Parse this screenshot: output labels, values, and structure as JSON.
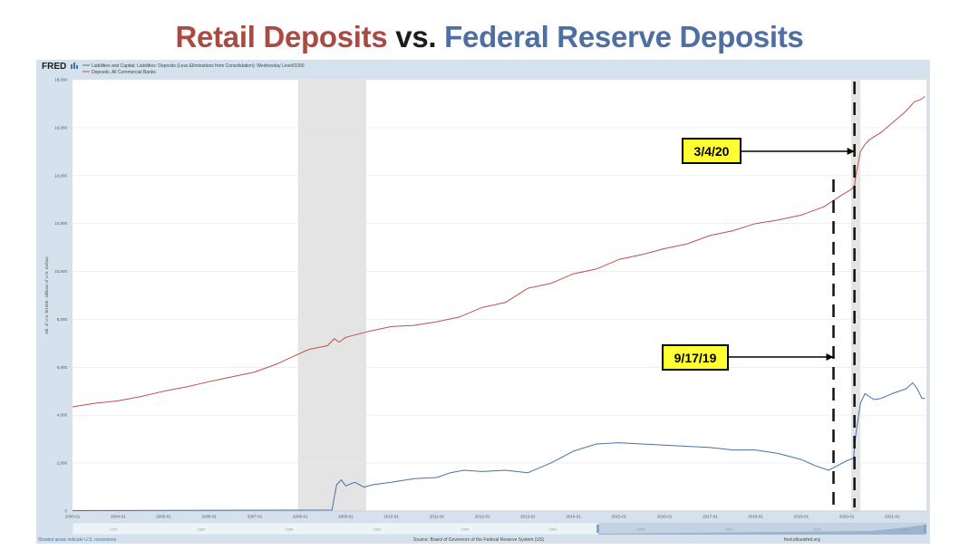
{
  "slide": {
    "title_part1": "Retail Deposits",
    "title_part2": "vs.",
    "title_part3": "Federal Reserve Deposits"
  },
  "fred": {
    "logo": "FRED",
    "legend": [
      "Liabilities and Capital: Liabilities: Deposits (Less Eliminations from Consolidation): Wednesday Level/1000",
      "Deposits, All Commercial Banks"
    ],
    "footer_left": "Shaded areas indicate U.S. recessions",
    "footer_center": "Source: Board of Governors of the Federal Reserve System (US)",
    "footer_right": "fred.stlouisfed.org",
    "navigator_labels": [
      "1975",
      "1980",
      "1985",
      "1990",
      "1995",
      "2000",
      "2005",
      "2010",
      "2015",
      "2020"
    ]
  },
  "annotations": [
    {
      "label": "3/4/20",
      "date": 2020.17
    },
    {
      "label": "9/17/19",
      "date": 2019.71
    }
  ],
  "colors": {
    "retail": "#a94a43",
    "fed": "#4d6fa3",
    "series_red": "#c0504d",
    "series_blue": "#4572a7",
    "callout_fill": "#ffff33",
    "recession": "#e4e4e4",
    "frame": "#d5e2ee"
  },
  "chart_data": {
    "type": "line",
    "ylabel": "Mil. of U.S. $/1000 , Billions of U.S. Dollars",
    "xlim": [
      2003,
      2021.75
    ],
    "ylim": [
      0,
      18000
    ],
    "yticks": [
      0,
      2000,
      4000,
      6000,
      8000,
      10000,
      12000,
      14000,
      16000,
      18000
    ],
    "ytick_labels": [
      "0",
      "2,000",
      "4,000",
      "6,000",
      "8,000",
      "10,000",
      "12,000",
      "14,000",
      "16,000",
      "18,000"
    ],
    "xticks": [
      2003,
      2004,
      2005,
      2006,
      2007,
      2008,
      2009,
      2010,
      2011,
      2012,
      2013,
      2014,
      2015,
      2016,
      2017,
      2018,
      2019,
      2020,
      2021
    ],
    "xtick_labels": [
      "2003-01",
      "2004-01",
      "2005-01",
      "2006-01",
      "2007-01",
      "2008-01",
      "2009-01",
      "2010-01",
      "2011-01",
      "2012-01",
      "2013-01",
      "2014-01",
      "2015-01",
      "2016-01",
      "2017-01",
      "2018-01",
      "2019-01",
      "2020-01",
      "2021-01"
    ],
    "recessions": [
      [
        2007.95,
        2009.45
      ],
      [
        2020.1,
        2020.3
      ]
    ],
    "grid": true,
    "series": [
      {
        "name": "Deposits, All Commercial Banks",
        "x": [
          2003.0,
          2003.5,
          2004.0,
          2004.5,
          2005.0,
          2005.5,
          2006.0,
          2006.5,
          2007.0,
          2007.5,
          2007.9,
          2008.2,
          2008.6,
          2008.75,
          2008.85,
          2009.0,
          2009.5,
          2010.0,
          2010.5,
          2011.0,
          2011.5,
          2012.0,
          2012.5,
          2013.0,
          2013.5,
          2014.0,
          2014.5,
          2015.0,
          2015.5,
          2016.0,
          2016.5,
          2017.0,
          2017.5,
          2018.0,
          2018.5,
          2019.0,
          2019.5,
          2019.9,
          2020.08,
          2020.17,
          2020.2,
          2020.3,
          2020.4,
          2020.5,
          2020.75,
          2021.0,
          2021.25,
          2021.5,
          2021.6,
          2021.72
        ],
        "values": [
          4350,
          4500,
          4600,
          4780,
          5000,
          5180,
          5400,
          5600,
          5800,
          6150,
          6500,
          6750,
          6900,
          7200,
          7050,
          7250,
          7500,
          7700,
          7750,
          7900,
          8100,
          8500,
          8700,
          9300,
          9500,
          9900,
          10100,
          10500,
          10700,
          10950,
          11150,
          11500,
          11700,
          12000,
          12150,
          12350,
          12700,
          13200,
          13400,
          13550,
          14000,
          15000,
          15300,
          15500,
          15800,
          16200,
          16600,
          17100,
          17150,
          17300
        ]
      },
      {
        "name": "Liabilities and Capital: Liabilities: Deposits (Less Eliminations from Consolidation): Wednesday Level/1000",
        "x": [
          2003.0,
          2008.7,
          2008.72,
          2008.8,
          2008.9,
          2009.0,
          2009.2,
          2009.4,
          2009.6,
          2010.0,
          2010.5,
          2011.0,
          2011.3,
          2011.6,
          2012.0,
          2012.5,
          2013.0,
          2013.5,
          2014.0,
          2014.5,
          2015.0,
          2015.5,
          2016.0,
          2016.5,
          2017.0,
          2017.5,
          2018.0,
          2018.5,
          2019.0,
          2019.3,
          2019.6,
          2019.8,
          2020.0,
          2020.15,
          2020.2,
          2020.3,
          2020.4,
          2020.6,
          2020.75,
          2021.0,
          2021.3,
          2021.45,
          2021.55,
          2021.65,
          2021.72
        ],
        "values": [
          20,
          40,
          300,
          1100,
          1300,
          1050,
          1200,
          1000,
          1100,
          1200,
          1350,
          1400,
          1600,
          1700,
          1650,
          1700,
          1600,
          2000,
          2500,
          2800,
          2850,
          2800,
          2750,
          2700,
          2650,
          2550,
          2550,
          2400,
          2150,
          1900,
          1700,
          1900,
          2100,
          2200,
          3200,
          4500,
          4900,
          4650,
          4700,
          4900,
          5100,
          5350,
          5100,
          4700,
          4700
        ]
      }
    ]
  }
}
